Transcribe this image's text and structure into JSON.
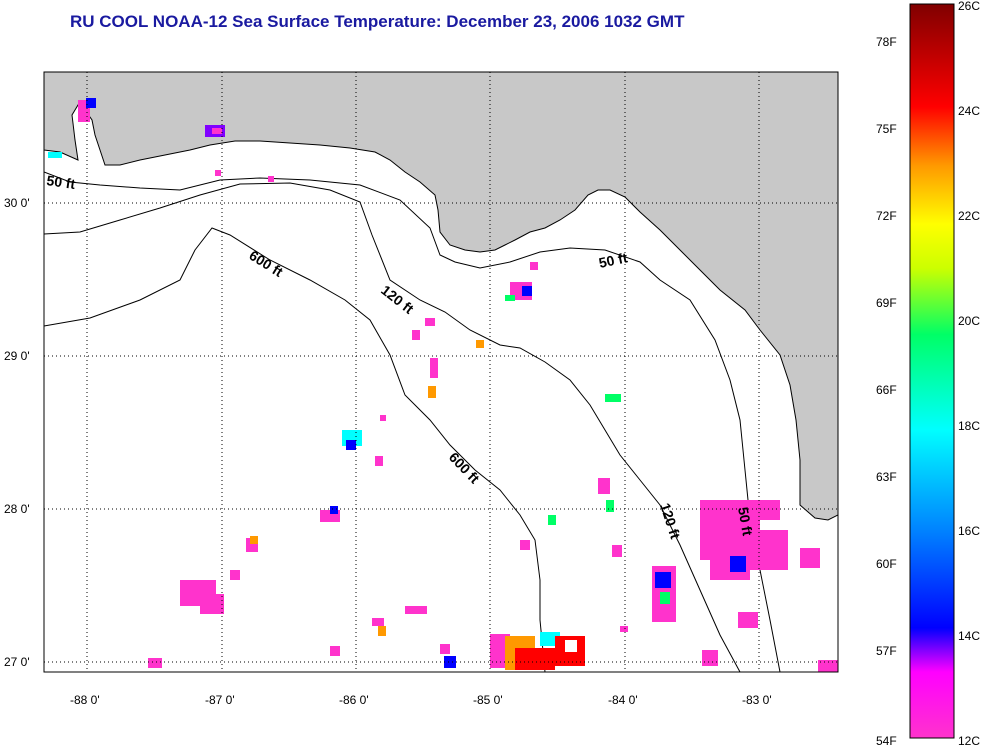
{
  "title": "RU COOL  NOAA-12  Sea Surface Temperature:  December 23, 2006 1032 GMT",
  "map": {
    "lon_labels": [
      "-88 0'",
      "-87 0'",
      "-86 0'",
      "-85 0'",
      "-84 0'",
      "-83 0'"
    ],
    "lat_labels": [
      "30 0'",
      "29 0'",
      "28 0'",
      "27 0'"
    ],
    "depth_labels": [
      "50 ft",
      "600 ft",
      "120 ft",
      "50 ft",
      "600 ft",
      "120 ft",
      "50 ft"
    ],
    "colors": {
      "land": "#c8c8c8",
      "ocean": "#ffffff",
      "grid": "#000000"
    }
  },
  "colorbar": {
    "f_labels": [
      "78F",
      "75F",
      "72F",
      "69F",
      "66F",
      "63F",
      "60F",
      "57F",
      "54F"
    ],
    "c_labels": [
      "26C",
      "24C",
      "22C",
      "20C",
      "18C",
      "16C",
      "14C",
      "12C"
    ],
    "range_c": [
      12,
      26
    ],
    "range_f": [
      54,
      78.8
    ]
  }
}
